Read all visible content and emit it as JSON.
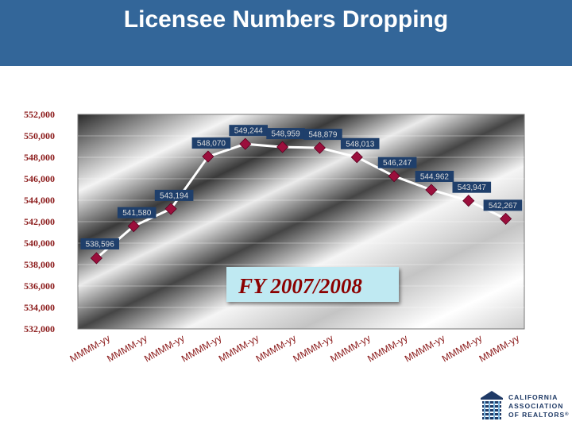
{
  "slide": {
    "title": "Licensee Numbers Dropping"
  },
  "callout": {
    "text": "FY 2007/2008"
  },
  "logo": {
    "lines": [
      "CALIFORNIA",
      "ASSOCIATION",
      "OF REALTORS"
    ],
    "registered": "®"
  },
  "colors": {
    "header": "#336699",
    "title_text": "#ffffff",
    "marker": "#9b0f3c",
    "line": "#ffffff",
    "callout_bg": "#bfe9f2",
    "label_bg": "#1f3f6b",
    "tick_text": "#8b1a1a"
  },
  "chart_data": {
    "type": "line",
    "title": "",
    "xlabel": "",
    "ylabel": "",
    "ylim": [
      532000,
      552000
    ],
    "y_ticks": [
      532000,
      534000,
      536000,
      538000,
      540000,
      542000,
      544000,
      546000,
      548000,
      550000,
      552000
    ],
    "y_tick_labels": [
      "532,000",
      "534,000",
      "536,000",
      "538,000",
      "540,000",
      "542,000",
      "544,000",
      "546,000",
      "548,000",
      "550,000",
      "552,000"
    ],
    "categories": [
      "MMMM-yy",
      "MMMM-yy",
      "MMMM-yy",
      "MMMM-yy",
      "MMMM-yy",
      "MMMM-yy",
      "MMMM-yy",
      "MMMM-yy",
      "MMMM-yy",
      "MMMM-yy",
      "MMMM-yy",
      "MMMM-yy"
    ],
    "series": [
      {
        "values": [
          538596,
          541580,
          543194,
          548070,
          549244,
          548959,
          548879,
          548013,
          546247,
          544962,
          543947,
          542267
        ],
        "labels": [
          "538,596",
          "541,580",
          "543,194",
          "548,070",
          "549,244",
          "548,959",
          "548,879",
          "548,013",
          "546,247",
          "544,962",
          "543,947",
          "542,267"
        ]
      }
    ]
  }
}
